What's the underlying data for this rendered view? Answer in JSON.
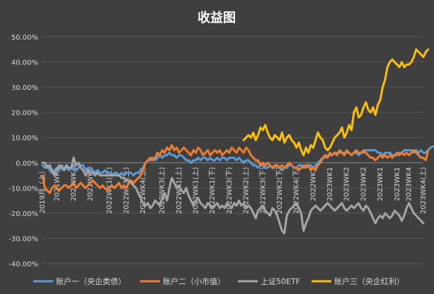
{
  "chart_data": {
    "type": "line",
    "title": "收益图",
    "xlabel": "",
    "ylabel": "",
    "ylim": [
      -0.4,
      0.5
    ],
    "yticks": [
      {
        "value": 0.5,
        "label": "50.00%"
      },
      {
        "value": 0.4,
        "label": "40.00%"
      },
      {
        "value": 0.3,
        "label": "30.00%"
      },
      {
        "value": 0.2,
        "label": "20.00%"
      },
      {
        "value": 0.1,
        "label": "10.00%"
      },
      {
        "value": 0.0,
        "label": "0.00%"
      },
      {
        "value": -0.1,
        "label": "-10.00%"
      },
      {
        "value": -0.2,
        "label": "-20.00%"
      },
      {
        "value": -0.3,
        "label": "-30.00%"
      },
      {
        "value": -0.4,
        "label": "-40.00%"
      }
    ],
    "grid": true,
    "legend_position": "bottom",
    "x_count": 160,
    "xticks": [
      {
        "index": 0,
        "label": "2019月（上）"
      },
      {
        "index": 6,
        "label": "2021WK1"
      },
      {
        "index": 13,
        "label": "2021WK4"
      },
      {
        "index": 20,
        "label": "2021WK4"
      },
      {
        "index": 28,
        "label": "2022WK1(上)"
      },
      {
        "index": 35,
        "label": "2022WK3(上)"
      },
      {
        "index": 42,
        "label": "2022WK4(上)"
      },
      {
        "index": 50,
        "label": "2022WK3(上)"
      },
      {
        "index": 57,
        "label": "2022WK1(上)"
      },
      {
        "index": 64,
        "label": "2022WK1(上)"
      },
      {
        "index": 71,
        "label": "2022WK1(下)"
      },
      {
        "index": 78,
        "label": "2022WK3(下)"
      },
      {
        "index": 85,
        "label": "2022WK2(上)"
      },
      {
        "index": 92,
        "label": "2022WK3(下)"
      },
      {
        "index": 99,
        "label": "2022WK2(下)"
      },
      {
        "index": 106,
        "label": "2022WK4(下)"
      },
      {
        "index": 113,
        "label": "2022WK3"
      },
      {
        "index": 120,
        "label": "2023WK1"
      },
      {
        "index": 127,
        "label": "2023WK2"
      },
      {
        "index": 134,
        "label": "2023WK2"
      },
      {
        "index": 141,
        "label": "2023WK1"
      },
      {
        "index": 148,
        "label": "2023WK1"
      },
      {
        "index": 153,
        "label": "2023WK4"
      },
      {
        "index": 159,
        "label": "2023WK4(上)"
      }
    ],
    "series": [
      {
        "name": "账户一（央企类债）",
        "color": "#5b9bd5",
        "start": 0,
        "values": [
          -0.01,
          -0.02,
          -0.01,
          -0.03,
          -0.04,
          -0.03,
          -0.02,
          -0.03,
          -0.01,
          -0.02,
          -0.02,
          -0.03,
          -0.02,
          -0.01,
          -0.03,
          -0.02,
          -0.01,
          -0.01,
          -0.03,
          -0.02,
          -0.02,
          -0.03,
          -0.04,
          -0.03,
          -0.04,
          -0.04,
          -0.03,
          -0.04,
          -0.04,
          -0.05,
          -0.04,
          -0.04,
          -0.05,
          -0.04,
          -0.05,
          -0.04,
          -0.04,
          -0.04,
          -0.05,
          -0.04,
          -0.04,
          -0.03,
          -0.02,
          0.0,
          0.01,
          0.01,
          0.02,
          0.01,
          0.02,
          0.03,
          0.02,
          0.03,
          0.03,
          0.04,
          0.03,
          0.03,
          0.02,
          0.03,
          0.03,
          0.02,
          0.01,
          0.01,
          0.0,
          0.01,
          0.01,
          0.02,
          0.01,
          0.02,
          0.02,
          0.01,
          0.02,
          0.01,
          0.01,
          0.02,
          0.01,
          0.02,
          0.02,
          0.01,
          0.02,
          0.02,
          0.02,
          0.01,
          0.02,
          0.01,
          0.0,
          0.01,
          0.01,
          0.0,
          -0.01,
          -0.01,
          -0.02,
          -0.01,
          -0.01,
          -0.02,
          -0.02,
          -0.01,
          -0.02,
          -0.02,
          -0.01,
          -0.02,
          -0.03,
          -0.02,
          -0.02,
          -0.01,
          -0.01,
          -0.02,
          -0.02,
          -0.01,
          -0.01,
          -0.02,
          -0.01,
          -0.01,
          -0.01,
          -0.02,
          -0.01,
          0.0,
          0.01,
          0.02,
          0.02,
          0.03,
          0.03,
          0.03,
          0.04,
          0.04,
          0.04,
          0.04,
          0.04,
          0.04,
          0.04,
          0.03,
          0.04,
          0.04,
          0.03,
          0.04,
          0.04,
          0.05,
          0.05,
          0.05,
          0.05,
          0.05,
          0.04,
          0.04,
          0.03,
          0.04,
          0.04,
          0.04,
          0.03,
          0.03,
          0.03,
          0.04,
          0.04,
          0.05,
          0.05,
          0.05,
          0.05,
          0.04,
          0.05,
          0.04,
          0.05,
          0.04,
          0.04,
          0.05,
          0.06,
          0.065
        ]
      },
      {
        "name": "账户二（小市值）",
        "color": "#ed7d31",
        "start": 0,
        "values": [
          -0.05,
          -0.1,
          -0.11,
          -0.12,
          -0.1,
          -0.09,
          -0.1,
          -0.11,
          -0.1,
          -0.09,
          -0.09,
          -0.1,
          -0.09,
          -0.08,
          -0.1,
          -0.09,
          -0.08,
          -0.09,
          -0.1,
          -0.09,
          -0.08,
          -0.07,
          -0.08,
          -0.09,
          -0.1,
          -0.09,
          -0.1,
          -0.11,
          -0.1,
          -0.09,
          -0.1,
          -0.09,
          -0.08,
          -0.1,
          -0.09,
          -0.1,
          -0.08,
          -0.07,
          -0.08,
          -0.07,
          -0.06,
          -0.05,
          -0.03,
          0.0,
          0.01,
          0.02,
          0.01,
          0.02,
          0.04,
          0.03,
          0.05,
          0.04,
          0.06,
          0.05,
          0.07,
          0.05,
          0.06,
          0.04,
          0.05,
          0.06,
          0.05,
          0.04,
          0.03,
          0.05,
          0.04,
          0.06,
          0.05,
          0.03,
          0.04,
          0.05,
          0.03,
          0.04,
          0.05,
          0.04,
          0.05,
          0.03,
          0.04,
          0.05,
          0.04,
          0.06,
          0.05,
          0.04,
          0.06,
          0.05,
          0.04,
          0.06,
          0.05,
          0.03,
          0.02,
          0.01,
          0.01,
          -0.01,
          0.0,
          -0.01,
          0.0,
          -0.01,
          -0.02,
          -0.01,
          -0.01,
          -0.02,
          -0.01,
          -0.02,
          -0.01,
          0.0,
          -0.01,
          -0.02,
          -0.02,
          -0.03,
          -0.02,
          -0.01,
          -0.02,
          -0.01,
          -0.03,
          -0.02,
          -0.03,
          -0.01,
          0.0,
          0.02,
          0.03,
          0.02,
          0.04,
          0.03,
          0.04,
          0.03,
          0.05,
          0.04,
          0.03,
          0.05,
          0.04,
          0.03,
          0.04,
          0.05,
          0.04,
          0.04,
          0.05,
          0.04,
          0.03,
          0.02,
          0.02,
          0.01,
          0.02,
          0.03,
          0.02,
          0.03,
          0.02,
          0.03,
          0.02,
          0.03,
          0.04,
          0.03,
          0.04,
          0.03,
          0.04,
          0.03,
          0.04,
          0.05,
          0.04,
          0.03,
          0.02,
          0.02,
          0.01,
          0.05
        ]
      },
      {
        "name": "上证50ETF",
        "color": "#a5a5a5",
        "start": 0,
        "values": [
          0.0,
          0.0,
          -0.02,
          -0.01,
          -0.03,
          -0.05,
          -0.03,
          -0.01,
          -0.02,
          -0.03,
          -0.01,
          -0.02,
          -0.02,
          0.02,
          -0.01,
          0.0,
          -0.02,
          -0.03,
          -0.05,
          -0.03,
          -0.04,
          -0.04,
          -0.05,
          -0.04,
          -0.05,
          -0.05,
          -0.05,
          -0.05,
          -0.05,
          -0.05,
          -0.05,
          -0.05,
          -0.05,
          -0.06,
          -0.06,
          -0.07,
          -0.07,
          -0.08,
          -0.09,
          -0.1,
          -0.12,
          -0.14,
          -0.16,
          -0.17,
          -0.16,
          -0.18,
          -0.17,
          -0.15,
          -0.16,
          -0.17,
          -0.14,
          -0.12,
          -0.15,
          -0.1,
          -0.06,
          -0.08,
          -0.1,
          -0.09,
          -0.11,
          -0.12,
          -0.1,
          -0.13,
          -0.15,
          -0.17,
          -0.15,
          -0.14,
          -0.16,
          -0.17,
          -0.18,
          -0.16,
          -0.17,
          -0.18,
          -0.17,
          -0.16,
          -0.18,
          -0.17,
          -0.18,
          -0.16,
          -0.17,
          -0.18,
          -0.16,
          -0.17,
          -0.15,
          -0.17,
          -0.16,
          -0.18,
          -0.17,
          -0.18,
          -0.2,
          -0.22,
          -0.19,
          -0.18,
          -0.17,
          -0.19,
          -0.2,
          -0.21,
          -0.18,
          -0.19,
          -0.21,
          -0.24,
          -0.27,
          -0.28,
          -0.21,
          -0.19,
          -0.18,
          -0.17,
          -0.16,
          -0.18,
          -0.2,
          -0.27,
          -0.24,
          -0.22,
          -0.19,
          -0.18,
          -0.17,
          -0.18,
          -0.19,
          -0.18,
          -0.17,
          -0.16,
          -0.17,
          -0.18,
          -0.19,
          -0.18,
          -0.17,
          -0.16,
          -0.18,
          -0.19,
          -0.18,
          -0.17,
          -0.18,
          -0.17,
          -0.16,
          -0.18,
          -0.19,
          -0.17,
          -0.18,
          -0.2,
          -0.22,
          -0.24,
          -0.22,
          -0.21,
          -0.22,
          -0.2,
          -0.21,
          -0.22,
          -0.21,
          -0.19,
          -0.2,
          -0.21,
          -0.23,
          -0.21,
          -0.18,
          -0.16,
          -0.18,
          -0.2,
          -0.21,
          -0.22,
          -0.23,
          -0.24
        ]
      },
      {
        "name": "账户三（央企红利）",
        "color": "#ffc000",
        "start": 84,
        "values": [
          0.09,
          0.1,
          0.11,
          0.1,
          0.12,
          0.09,
          0.11,
          0.14,
          0.13,
          0.15,
          0.12,
          0.1,
          0.09,
          0.11,
          0.1,
          0.09,
          0.12,
          0.08,
          0.1,
          0.11,
          0.09,
          0.08,
          0.06,
          0.08,
          0.05,
          0.03,
          0.06,
          0.04,
          0.07,
          0.06,
          0.09,
          0.12,
          0.1,
          0.09,
          0.06,
          0.05,
          0.06,
          0.08,
          0.1,
          0.11,
          0.12,
          0.14,
          0.1,
          0.12,
          0.15,
          0.13,
          0.2,
          0.22,
          0.18,
          0.19,
          0.22,
          0.24,
          0.21,
          0.2,
          0.22,
          0.19,
          0.23,
          0.25,
          0.3,
          0.33,
          0.38,
          0.4,
          0.41,
          0.4,
          0.39,
          0.38,
          0.4,
          0.38,
          0.39,
          0.39,
          0.4,
          0.42,
          0.45,
          0.44,
          0.43,
          0.42,
          0.44,
          0.45
        ]
      }
    ]
  }
}
